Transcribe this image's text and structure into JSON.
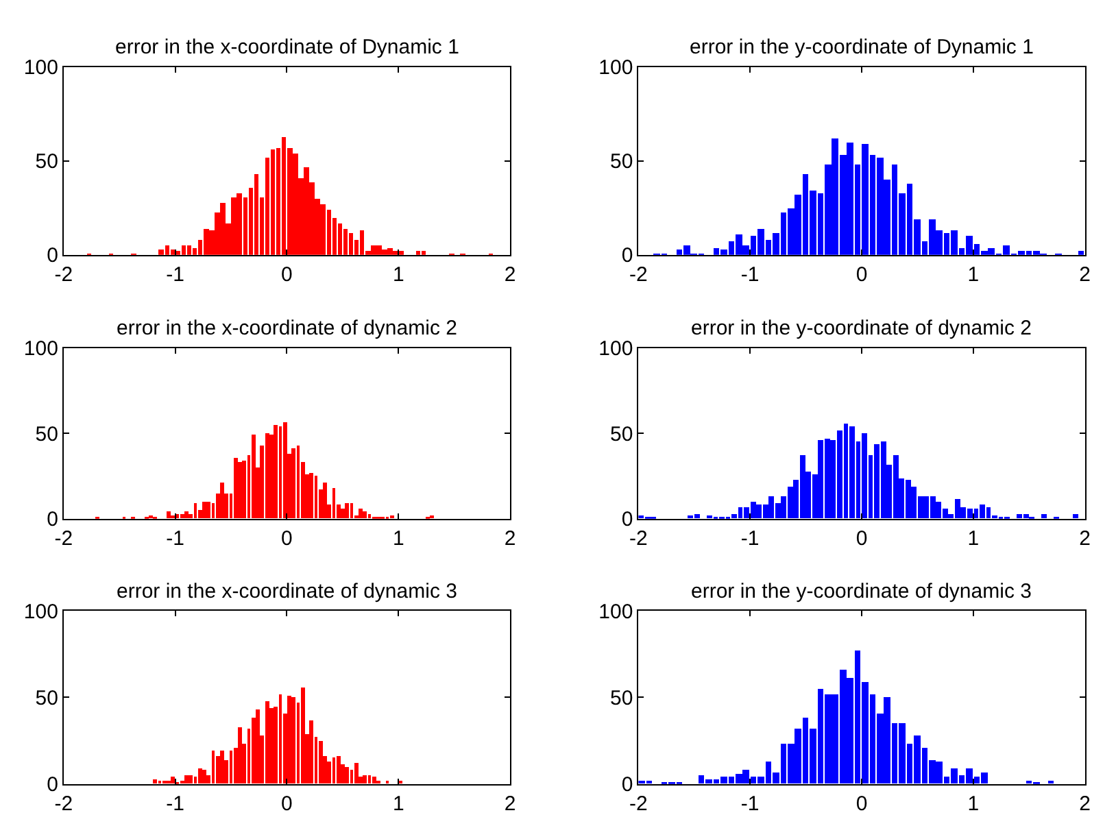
{
  "chart_data": [
    {
      "type": "histogram",
      "title": "error in the x-coordinate of Dynamic 1",
      "color": "#ff0000",
      "xlim": [
        -2,
        2
      ],
      "xticks": [
        -2,
        -1,
        0,
        1,
        2
      ],
      "ylim": [
        0,
        100
      ],
      "yticks": [
        0,
        50,
        100
      ],
      "grid": false,
      "bins": [
        -1.8,
        -1.75,
        -1.7,
        -1.65,
        -1.6,
        -1.55,
        -1.5,
        -1.45,
        -1.4,
        -1.35,
        -1.3,
        -1.25,
        -1.2,
        -1.15,
        -1.1,
        -1.05,
        -1,
        -0.95,
        -0.9,
        -0.85,
        -0.8,
        -0.75,
        -0.7,
        -0.65,
        -0.6,
        -0.55,
        -0.5,
        -0.45,
        -0.4,
        -0.35,
        -0.3,
        -0.25,
        -0.2,
        -0.15,
        -0.1,
        -0.05,
        0,
        0.05,
        0.1,
        0.15,
        0.2,
        0.25,
        0.3,
        0.35,
        0.4,
        0.45,
        0.5,
        0.55,
        0.6,
        0.65,
        0.7,
        0.75,
        0.8,
        0.85,
        0.9,
        0.95,
        1,
        1.05,
        1.1,
        1.15,
        1.2,
        1.25,
        1.3,
        1.35,
        1.4,
        1.45,
        1.5,
        1.55,
        1.6,
        1.65,
        1.7,
        1.75,
        1.8,
        1.85
      ],
      "values": [
        1,
        0,
        0,
        0,
        1,
        0,
        0,
        0,
        1,
        0,
        0,
        0,
        0,
        3,
        5,
        3,
        2,
        5,
        5,
        4,
        8,
        14,
        13,
        23,
        28,
        17,
        31,
        33,
        31,
        36,
        43,
        31,
        52,
        56,
        57,
        63,
        57,
        54,
        41,
        47,
        39,
        30,
        27,
        24,
        20,
        17,
        14,
        12,
        8,
        13,
        2,
        5,
        5,
        3,
        4,
        2,
        2,
        0,
        0,
        2,
        2,
        0,
        0,
        0,
        0,
        1,
        0,
        1,
        0,
        0,
        0,
        0,
        1
      ]
    },
    {
      "type": "histogram",
      "title": "error in the y-coordinate of Dynamic 1",
      "color": "#0000ff",
      "xlim": [
        -2,
        2
      ],
      "xticks": [
        -2,
        -1,
        0,
        1,
        2
      ],
      "ylim": [
        0,
        100
      ],
      "yticks": [
        0,
        50,
        100
      ],
      "grid": false,
      "bins": [
        -1.867,
        -1.8,
        -1.733,
        -1.667,
        -1.6,
        -1.533,
        -1.467,
        -1.4,
        -1.333,
        -1.267,
        -1.2,
        -1.133,
        -1.067,
        -1,
        -0.933,
        -0.867,
        -0.8,
        -0.733,
        -0.667,
        -0.6,
        -0.533,
        -0.467,
        -0.4,
        -0.333,
        -0.267,
        -0.2,
        -0.133,
        -0.067,
        0,
        0.067,
        0.133,
        0.2,
        0.267,
        0.333,
        0.4,
        0.467,
        0.533,
        0.6,
        0.667,
        0.733,
        0.8,
        0.867,
        0.933,
        1,
        1.067,
        1.133,
        1.2,
        1.267,
        1.333,
        1.4,
        1.467,
        1.533,
        1.6,
        1.667,
        1.733,
        1.8,
        1.867,
        1.933,
        2
      ],
      "values": [
        1,
        1,
        0,
        3,
        5,
        1,
        1,
        0,
        4,
        3,
        7,
        11,
        5,
        10,
        14,
        8,
        12,
        23,
        25,
        32,
        43,
        34,
        33,
        48,
        62,
        53,
        60,
        48,
        59,
        53,
        52,
        40,
        48,
        33,
        38,
        19,
        7,
        19,
        13,
        12,
        13,
        4,
        10,
        6,
        2,
        4,
        1,
        5,
        1,
        2,
        2,
        2,
        1,
        0,
        1,
        0,
        0,
        2
      ]
    },
    {
      "type": "histogram",
      "title": "error in the x-coordinate of dynamic 2",
      "color": "#ff0000",
      "xlim": [
        -2,
        2
      ],
      "xticks": [
        -2,
        -1,
        0,
        1,
        2
      ],
      "ylim": [
        0,
        100
      ],
      "yticks": [
        0,
        50,
        100
      ],
      "grid": false,
      "bins": [
        -1.72,
        -1.68,
        -1.64,
        -1.6,
        -1.56,
        -1.52,
        -1.48,
        -1.44,
        -1.4,
        -1.36,
        -1.32,
        -1.28,
        -1.24,
        -1.2,
        -1.16,
        -1.12,
        -1.08,
        -1.04,
        -1,
        -0.96,
        -0.92,
        -0.88,
        -0.84,
        -0.8,
        -0.76,
        -0.72,
        -0.68,
        -0.64,
        -0.6,
        -0.56,
        -0.52,
        -0.48,
        -0.44,
        -0.4,
        -0.36,
        -0.32,
        -0.28,
        -0.24,
        -0.2,
        -0.16,
        -0.12,
        -0.08,
        -0.04,
        0,
        0.04,
        0.08,
        0.12,
        0.16,
        0.2,
        0.24,
        0.28,
        0.32,
        0.36,
        0.4,
        0.44,
        0.48,
        0.52,
        0.56,
        0.6,
        0.64,
        0.68,
        0.72,
        0.76,
        0.8,
        0.84,
        0.88,
        0.92,
        0.96,
        1,
        1.04,
        1.08,
        1.12,
        1.16,
        1.2,
        1.24,
        1.28,
        1.32
      ],
      "values": [
        1,
        0,
        0,
        0,
        0,
        0,
        1,
        0,
        1,
        0,
        0,
        1,
        2,
        1,
        0,
        0,
        4,
        2,
        3,
        3,
        4,
        3,
        9,
        5,
        10,
        10,
        9,
        15,
        21,
        15,
        15,
        36,
        33,
        34,
        37,
        49,
        30,
        43,
        50,
        49,
        55,
        54,
        57,
        38,
        41,
        43,
        33,
        26,
        27,
        25,
        17,
        21,
        8,
        18,
        8,
        6,
        9,
        9,
        2,
        6,
        4,
        3,
        1,
        1,
        1,
        1,
        2,
        0,
        0,
        0,
        0,
        0,
        0,
        0,
        1,
        2
      ]
    },
    {
      "type": "histogram",
      "title": "error in the y-coordinate of dynamic 2",
      "color": "#0000ff",
      "xlim": [
        -2,
        2
      ],
      "xticks": [
        -2,
        -1,
        0,
        1,
        2
      ],
      "ylim": [
        0,
        100
      ],
      "yticks": [
        0,
        50,
        100
      ],
      "grid": false,
      "bins": [
        -2,
        -1.944,
        -1.889,
        -1.833,
        -1.778,
        -1.722,
        -1.667,
        -1.611,
        -1.556,
        -1.5,
        -1.444,
        -1.389,
        -1.333,
        -1.278,
        -1.222,
        -1.167,
        -1.111,
        -1.056,
        -1,
        -0.944,
        -0.889,
        -0.833,
        -0.778,
        -0.722,
        -0.667,
        -0.611,
        -0.556,
        -0.5,
        -0.444,
        -0.389,
        -0.333,
        -0.278,
        -0.222,
        -0.167,
        -0.111,
        -0.056,
        0,
        0.056,
        0.111,
        0.167,
        0.222,
        0.278,
        0.333,
        0.389,
        0.444,
        0.5,
        0.556,
        0.611,
        0.667,
        0.722,
        0.778,
        0.833,
        0.889,
        0.944,
        1,
        1.056,
        1.111,
        1.167,
        1.222,
        1.278,
        1.333,
        1.389,
        1.444,
        1.5,
        1.556,
        1.611,
        1.667,
        1.722,
        1.778,
        1.833,
        1.889,
        1.944
      ],
      "values": [
        2,
        1,
        1,
        0,
        0,
        0,
        0,
        0,
        2,
        3,
        0,
        2,
        1,
        1,
        1,
        3,
        7,
        7,
        10,
        8,
        8,
        13,
        9,
        13,
        19,
        23,
        37,
        28,
        26,
        46,
        47,
        46,
        52,
        56,
        54,
        45,
        50,
        37,
        44,
        45,
        32,
        37,
        24,
        23,
        19,
        13,
        13,
        13,
        10,
        6,
        3,
        12,
        7,
        6,
        6,
        8,
        7,
        2,
        1,
        1,
        0,
        3,
        3,
        1,
        0,
        3,
        0,
        1,
        0,
        0,
        3
      ]
    },
    {
      "type": "histogram",
      "title": "error in the x-coordinate of dynamic 3",
      "color": "#ff0000",
      "xlim": [
        -2,
        2
      ],
      "xticks": [
        -2,
        -1,
        0,
        1,
        2
      ],
      "ylim": [
        0,
        100
      ],
      "yticks": [
        0,
        50,
        100
      ],
      "grid": false,
      "bins": [
        -1.2,
        -1.16,
        -1.12,
        -1.08,
        -1.04,
        -1,
        -0.96,
        -0.92,
        -0.88,
        -0.84,
        -0.8,
        -0.76,
        -0.72,
        -0.68,
        -0.64,
        -0.6,
        -0.56,
        -0.52,
        -0.48,
        -0.44,
        -0.4,
        -0.36,
        -0.32,
        -0.28,
        -0.24,
        -0.2,
        -0.16,
        -0.12,
        -0.08,
        -0.04,
        0,
        0.04,
        0.08,
        0.12,
        0.16,
        0.2,
        0.24,
        0.28,
        0.32,
        0.36,
        0.4,
        0.44,
        0.48,
        0.52,
        0.56,
        0.6,
        0.64,
        0.68,
        0.72,
        0.76,
        0.8,
        0.84,
        0.88,
        0.92,
        0.96,
        1,
        1.04
      ],
      "values": [
        3,
        2,
        2,
        2,
        4,
        1,
        2,
        5,
        5,
        4,
        9,
        8,
        5,
        19,
        16,
        19,
        14,
        19,
        21,
        33,
        23,
        32,
        38,
        43,
        28,
        48,
        44,
        45,
        52,
        41,
        51,
        50,
        47,
        56,
        29,
        37,
        27,
        25,
        16,
        13,
        15,
        16,
        11,
        10,
        8,
        12,
        4,
        5,
        5,
        4,
        2,
        0,
        2,
        0,
        0,
        2
      ]
    },
    {
      "type": "histogram",
      "title": "error in the y-coordinate of dynamic 3",
      "color": "#0000ff",
      "xlim": [
        -2,
        2
      ],
      "xticks": [
        -2,
        -1,
        0,
        1,
        2
      ],
      "ylim": [
        0,
        100
      ],
      "yticks": [
        0,
        50,
        100
      ],
      "grid": false,
      "bins": [
        -2,
        -1.933,
        -1.867,
        -1.8,
        -1.733,
        -1.667,
        -1.6,
        -1.533,
        -1.467,
        -1.4,
        -1.333,
        -1.267,
        -1.2,
        -1.133,
        -1.067,
        -1,
        -0.933,
        -0.867,
        -0.8,
        -0.733,
        -0.667,
        -0.6,
        -0.533,
        -0.467,
        -0.4,
        -0.333,
        -0.267,
        -0.2,
        -0.133,
        -0.067,
        0,
        0.067,
        0.133,
        0.2,
        0.267,
        0.333,
        0.4,
        0.467,
        0.533,
        0.6,
        0.667,
        0.733,
        0.8,
        0.867,
        0.933,
        1,
        1.067,
        1.133,
        1.2,
        1.267,
        1.333,
        1.4,
        1.467,
        1.533,
        1.6,
        1.667,
        1.733
      ],
      "values": [
        2,
        2,
        0,
        1,
        1,
        1,
        0,
        0,
        5,
        3,
        3,
        4,
        4,
        6,
        8,
        4,
        4,
        13,
        7,
        23,
        23,
        32,
        38,
        32,
        55,
        52,
        52,
        66,
        61,
        77,
        59,
        52,
        41,
        50,
        35,
        35,
        23,
        28,
        21,
        14,
        13,
        4,
        9,
        5,
        9,
        4,
        7,
        0,
        0,
        0,
        0,
        0,
        2,
        1,
        0,
        2
      ]
    }
  ]
}
